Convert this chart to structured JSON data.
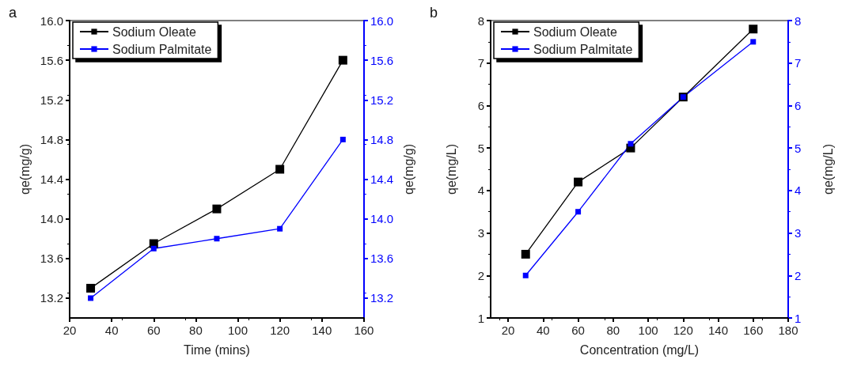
{
  "chart_data": [
    {
      "type": "line",
      "title": "a",
      "xlabel": "Time (mins)",
      "ylabel": "qe(mg/g)",
      "y2label": "qe(mg/g)",
      "x": [
        30,
        60,
        90,
        120,
        150
      ],
      "series": [
        {
          "name": "Sodium Oleate",
          "color": "#000000",
          "values": [
            13.3,
            13.75,
            14.1,
            14.5,
            15.6
          ]
        },
        {
          "name": "Sodium Palmitate",
          "color": "#0000ff",
          "axis": "y2",
          "values": [
            13.2,
            13.7,
            13.8,
            13.9,
            14.8
          ]
        }
      ],
      "xlim": [
        20,
        160
      ],
      "xticks": [
        20,
        40,
        60,
        80,
        100,
        120,
        140,
        160
      ],
      "ylim": [
        13.0,
        16.0
      ],
      "yticks": [
        {
          "value": 13.2,
          "label": "13.2"
        },
        {
          "value": 13.6,
          "label": "13.6"
        },
        {
          "value": 14.0,
          "label": "14.0"
        },
        {
          "value": 14.4,
          "label": "14.4"
        },
        {
          "value": 14.8,
          "label": "14.8"
        },
        {
          "value": 15.2,
          "label": "15.2"
        },
        {
          "value": 15.6,
          "label": "15.6"
        },
        {
          "value": 16.0,
          "label": "16.0"
        }
      ],
      "y2lim": [
        13.0,
        16.0
      ],
      "y2ticks": [
        {
          "value": 13.2,
          "label": "13.2"
        },
        {
          "value": 13.6,
          "label": "13.6"
        },
        {
          "value": 14.0,
          "label": "14.0"
        },
        {
          "value": 14.4,
          "label": "14.4"
        },
        {
          "value": 14.8,
          "label": "14.8"
        },
        {
          "value": 15.2,
          "label": "15.2"
        },
        {
          "value": 15.6,
          "label": "15.6"
        },
        {
          "value": 16.0,
          "label": "16.0"
        }
      ],
      "grid": false,
      "legend": "top left",
      "marker": "square",
      "line_style": "solid"
    },
    {
      "type": "line",
      "title": "b",
      "xlabel": "Concentration (mg/L)",
      "ylabel": "qe(mg/L)",
      "y2label": "qe(mg/L)",
      "x": [
        30,
        60,
        90,
        120,
        160
      ],
      "series": [
        {
          "name": "Sodium Oleate",
          "color": "#000000",
          "values": [
            2.5,
            4.2,
            5.0,
            6.2,
            7.8
          ]
        },
        {
          "name": "Sodium Palmitate",
          "color": "#0000ff",
          "axis": "y2",
          "values": [
            2.0,
            3.5,
            5.1,
            6.2,
            7.5
          ]
        }
      ],
      "xlim": [
        10,
        180
      ],
      "xticks": [
        20,
        40,
        60,
        80,
        100,
        120,
        140,
        160,
        180
      ],
      "ylim": [
        1,
        8
      ],
      "yticks": [
        1,
        2,
        3,
        4,
        5,
        6,
        7,
        8
      ],
      "y2lim": [
        1,
        8
      ],
      "y2ticks": [
        1,
        2,
        3,
        4,
        5,
        6,
        7,
        8
      ],
      "grid": false,
      "legend": "top left",
      "marker": "square",
      "line_style": "solid"
    }
  ]
}
